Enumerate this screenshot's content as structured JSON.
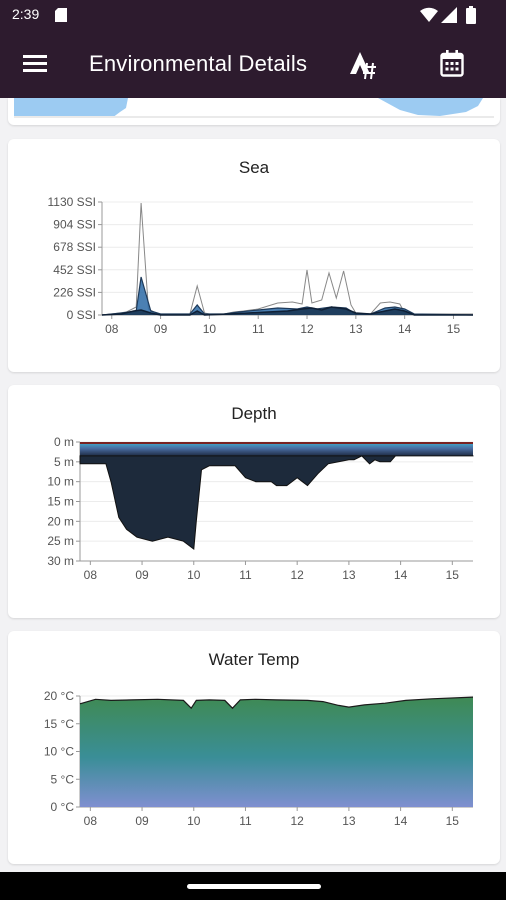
{
  "status": {
    "time": "2:39"
  },
  "appbar": {
    "title": "Environmental Details",
    "menu_icon": "menu-icon",
    "tag_icon": "tag-icon",
    "calendar_icon": "calendar-icon"
  },
  "colors": {
    "bar": "#2d1b2e",
    "map_water": "#9ccbf2"
  },
  "charts": {
    "sea": {
      "title": "Sea",
      "chart_data": {
        "type": "line",
        "title": "Sea",
        "y_ticks": [
          "1130 SSI",
          "904 SSI",
          "678 SSI",
          "452 SSI",
          "226 SSI",
          "0 SSI"
        ],
        "ylim": [
          0,
          1130
        ],
        "xlim": [
          7.8,
          15.4
        ],
        "x_ticks": [
          "08",
          "09",
          "10",
          "11",
          "12",
          "13",
          "14",
          "15"
        ],
        "series": [
          {
            "x": [
              7.8,
              8.0,
              8.3,
              8.5,
              8.6,
              8.75,
              8.9,
              9.0,
              9.6,
              9.75,
              9.9,
              10.0,
              10.3,
              10.5,
              10.7,
              11.0,
              11.4,
              11.7,
              11.9,
              12.0,
              12.1,
              12.3,
              12.45,
              12.6,
              12.75,
              12.9,
              13.0,
              13.3,
              13.5,
              13.7,
              13.9,
              14.0,
              14.2,
              15.4
            ],
            "y": [
              0,
              10,
              30,
              80,
              1120,
              60,
              20,
              10,
              10,
              290,
              20,
              10,
              10,
              30,
              40,
              60,
              120,
              130,
              110,
              450,
              120,
              150,
              420,
              170,
              440,
              100,
              20,
              10,
              120,
              130,
              110,
              20,
              10,
              10
            ]
          },
          {
            "x": [
              7.8,
              8.2,
              8.5,
              8.6,
              8.8,
              9.0,
              9.6,
              9.75,
              9.9,
              10.3,
              10.6,
              11.0,
              11.4,
              11.8,
              12.0,
              12.2,
              12.5,
              12.8,
              13.0,
              13.3,
              13.6,
              13.8,
              14.0,
              14.2,
              15.4
            ],
            "y": [
              0,
              20,
              40,
              380,
              40,
              10,
              10,
              100,
              10,
              10,
              30,
              50,
              70,
              60,
              80,
              60,
              80,
              70,
              10,
              10,
              70,
              80,
              60,
              10,
              0
            ]
          },
          {
            "x": [
              7.8,
              8.2,
              8.45,
              8.6,
              8.8,
              9.0,
              9.6,
              9.75,
              9.9,
              10.4,
              10.8,
              11.2,
              11.6,
              11.9,
              12.1,
              12.3,
              12.5,
              12.8,
              13.0,
              13.3,
              13.6,
              13.8,
              14.0,
              14.2,
              15.4
            ],
            "y": [
              0,
              10,
              40,
              50,
              20,
              0,
              0,
              40,
              0,
              10,
              20,
              30,
              40,
              60,
              70,
              50,
              80,
              60,
              20,
              10,
              40,
              60,
              40,
              0,
              0
            ]
          }
        ]
      }
    },
    "depth": {
      "title": "Depth",
      "chart_data": {
        "type": "area",
        "title": "Depth",
        "y_ticks": [
          "0 m",
          "5 m",
          "10 m",
          "15 m",
          "20 m",
          "25 m",
          "30 m"
        ],
        "ylim": [
          0,
          30
        ],
        "xlim": [
          7.8,
          15.4
        ],
        "x_ticks": [
          "08",
          "09",
          "10",
          "11",
          "12",
          "13",
          "14",
          "15"
        ],
        "series": [
          {
            "x": [
              7.8,
              8.3,
              8.4,
              8.55,
              8.7,
              8.9,
              9.2,
              9.5,
              9.8,
              10.0,
              10.05,
              10.15,
              10.3,
              10.5,
              10.8,
              11.0,
              11.2,
              11.5,
              11.6,
              11.8,
              12.0,
              12.1,
              12.2,
              12.4,
              12.6,
              12.8,
              13.0,
              13.1,
              13.25,
              13.4,
              13.5,
              13.6,
              13.8,
              13.9,
              15.4
            ],
            "y": [
              5.5,
              5.5,
              10,
              19,
              22,
              24,
              25,
              24,
              25,
              27,
              20,
              7,
              6,
              6,
              6,
              9,
              10,
              10,
              11,
              11,
              9,
              10,
              11,
              8,
              5.5,
              5,
              4.5,
              4.5,
              3.5,
              5.5,
              4.5,
              5,
              5,
              3.5,
              3.5
            ]
          }
        ]
      }
    },
    "temp": {
      "title": "Water Temp",
      "chart_data": {
        "type": "area",
        "title": "Water Temp",
        "y_ticks": [
          "20 °C",
          "15 °C",
          "10 °C",
          "5 °C",
          "0 °C"
        ],
        "ylim": [
          0,
          20
        ],
        "xlim": [
          7.8,
          15.4
        ],
        "x_ticks": [
          "08",
          "09",
          "10",
          "11",
          "12",
          "13",
          "14",
          "15"
        ],
        "series": [
          {
            "x": [
              7.8,
              8.1,
              8.4,
              8.8,
              9.3,
              9.8,
              9.95,
              10.05,
              10.3,
              10.6,
              10.75,
              10.9,
              11.2,
              11.6,
              12.2,
              12.5,
              12.8,
              13.0,
              13.3,
              13.7,
              14.1,
              14.6,
              15.4
            ],
            "y": [
              18.6,
              19.4,
              19.2,
              19.3,
              19.4,
              19.2,
              17.8,
              19.2,
              19.3,
              19.2,
              17.8,
              19.3,
              19.4,
              19.3,
              19.2,
              19.0,
              18.3,
              18.0,
              18.4,
              18.7,
              19.2,
              19.5,
              19.8
            ]
          }
        ]
      }
    }
  }
}
